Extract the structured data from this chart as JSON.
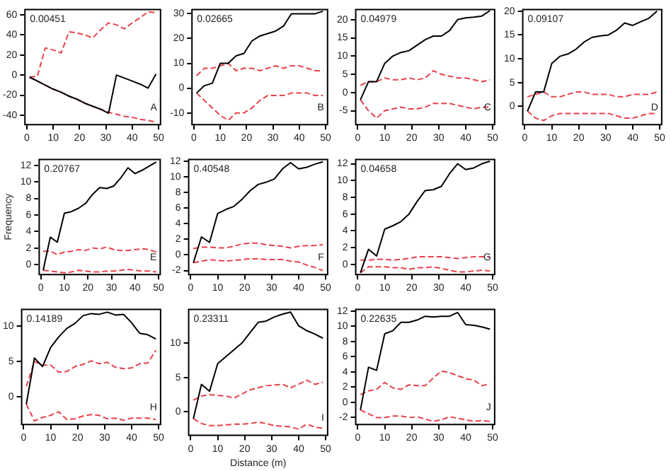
{
  "chart_data": [
    {
      "type": "line",
      "annotations": [
        "0.00451",
        "A"
      ],
      "x": [
        1,
        4,
        7,
        10,
        13,
        16,
        19,
        22,
        25,
        28,
        31,
        34,
        37,
        40,
        43,
        46,
        49
      ],
      "xlim": [
        -1,
        51
      ],
      "xticks": [
        0,
        10,
        20,
        30,
        40,
        50
      ],
      "ylim": [
        -50,
        66
      ],
      "yticks": [
        -40,
        -20,
        0,
        20,
        40,
        60
      ],
      "legend": false,
      "grid": false,
      "series": [
        {
          "color": "#000000",
          "line_style": "solid",
          "values": [
            -2,
            -6,
            -10,
            -14,
            -17,
            -21,
            -24,
            -28,
            -31,
            -34,
            -38,
            0,
            -3,
            -6,
            -9,
            -13,
            1
          ]
        },
        {
          "color": "#e8424a",
          "line_style": "dashed",
          "values": [
            -2,
            -1,
            27,
            25,
            22,
            43,
            42,
            40,
            37,
            45,
            52,
            50,
            46,
            52,
            57,
            63,
            62
          ]
        },
        {
          "color": "#e8424a",
          "line_style": "dashed",
          "values": [
            -2,
            -6,
            -10,
            -14,
            -17,
            -21,
            -24,
            -28,
            -31,
            -34,
            -37,
            -39,
            -41,
            -42,
            -44,
            -45,
            -47
          ]
        }
      ]
    },
    {
      "type": "line",
      "annotations": [
        "0.02665",
        "B"
      ],
      "x": [
        1,
        4,
        7,
        10,
        13,
        16,
        19,
        22,
        25,
        28,
        31,
        34,
        37,
        40,
        43,
        46,
        49
      ],
      "xlim": [
        -1,
        51
      ],
      "xticks": [
        0,
        10,
        20,
        30,
        40,
        50
      ],
      "ylim": [
        -15,
        32
      ],
      "yticks": [
        -10,
        0,
        10,
        20,
        30
      ],
      "legend": false,
      "grid": false,
      "series": [
        {
          "color": "#000000",
          "line_style": "solid",
          "values": [
            -2,
            1,
            2,
            10,
            10,
            13,
            14,
            19,
            21,
            22,
            23,
            25,
            30,
            30,
            30,
            30,
            31
          ]
        },
        {
          "color": "#e8424a",
          "line_style": "dashed",
          "values": [
            5,
            8,
            8,
            9,
            10,
            7,
            8,
            8,
            7,
            8,
            9,
            8,
            9,
            9,
            8,
            7,
            7
          ]
        },
        {
          "color": "#e8424a",
          "line_style": "dashed",
          "values": [
            -2,
            -5,
            -8,
            -11,
            -13,
            -10,
            -10,
            -8,
            -5,
            -3,
            -3,
            -3,
            -2,
            -2,
            -2,
            -3,
            -3
          ]
        }
      ]
    },
    {
      "type": "line",
      "annotations": [
        "0.04979",
        "C"
      ],
      "x": [
        1,
        4,
        7,
        10,
        13,
        16,
        19,
        22,
        25,
        28,
        31,
        34,
        37,
        40,
        43,
        46,
        49
      ],
      "xlim": [
        -1,
        51
      ],
      "xticks": [
        0,
        10,
        20,
        30,
        40,
        50
      ],
      "ylim": [
        -9,
        23
      ],
      "yticks": [
        -5,
        0,
        5,
        10,
        15,
        20
      ],
      "legend": false,
      "grid": false,
      "series": [
        {
          "color": "#000000",
          "line_style": "solid",
          "values": [
            -2,
            3,
            3,
            8,
            10,
            11,
            11.5,
            13,
            14.5,
            15.5,
            15.5,
            17,
            20,
            20.5,
            20.7,
            21,
            22.5
          ]
        },
        {
          "color": "#e8424a",
          "line_style": "dashed",
          "values": [
            2,
            3,
            3,
            4,
            3.5,
            3.5,
            4,
            3.5,
            4,
            6,
            5,
            4.5,
            4,
            4,
            3.5,
            3,
            3.5
          ]
        },
        {
          "color": "#e8424a",
          "line_style": "dashed",
          "values": [
            -2,
            -5,
            -7,
            -5,
            -4.5,
            -4,
            -4.5,
            -4.5,
            -4,
            -3,
            -3,
            -3,
            -3.5,
            -4,
            -4.5,
            -4,
            -4
          ]
        }
      ]
    },
    {
      "type": "line",
      "annotations": [
        "0.09107",
        "D"
      ],
      "x": [
        1,
        4,
        7,
        10,
        13,
        16,
        19,
        22,
        25,
        28,
        31,
        34,
        37,
        40,
        43,
        46,
        49
      ],
      "xlim": [
        -1,
        51
      ],
      "xticks": [
        0,
        10,
        20,
        30,
        40,
        50
      ],
      "ylim": [
        -4,
        20.5
      ],
      "yticks": [
        0,
        5,
        10,
        15,
        20
      ],
      "legend": false,
      "grid": false,
      "series": [
        {
          "color": "#000000",
          "line_style": "solid",
          "values": [
            -1,
            3,
            3,
            9,
            10.5,
            11,
            12,
            13.5,
            14.5,
            14.8,
            15,
            16,
            17.5,
            17,
            17.8,
            18.5,
            20
          ]
        },
        {
          "color": "#e8424a",
          "line_style": "dashed",
          "values": [
            2,
            2.5,
            3,
            2,
            2,
            2.5,
            3,
            3,
            2.5,
            2.5,
            2.5,
            2,
            2,
            2.5,
            2.5,
            2.5,
            3
          ]
        },
        {
          "color": "#e8424a",
          "line_style": "dashed",
          "values": [
            -1,
            -2.5,
            -3,
            -2,
            -1.5,
            -1.5,
            -1.5,
            -1.5,
            -1.5,
            -1.5,
            -1.5,
            -2,
            -2.5,
            -2.5,
            -2,
            -1.5,
            -1.5
          ]
        }
      ]
    },
    {
      "type": "line",
      "annotations": [
        "0.20767",
        "E"
      ],
      "ylabel": "Frequency",
      "x": [
        1,
        4,
        7,
        10,
        13,
        16,
        19,
        22,
        25,
        28,
        31,
        34,
        37,
        40,
        43,
        46,
        49
      ],
      "xlim": [
        -1,
        51
      ],
      "xticks": [
        0,
        10,
        20,
        30,
        40,
        50
      ],
      "ylim": [
        -1.3,
        12.8
      ],
      "yticks": [
        0,
        2,
        4,
        6,
        8,
        10,
        12
      ],
      "legend": false,
      "grid": false,
      "series": [
        {
          "color": "#000000",
          "line_style": "solid",
          "values": [
            -0.7,
            3.3,
            2.7,
            6.2,
            6.4,
            6.8,
            7.4,
            8.5,
            9.3,
            9.2,
            9.5,
            10.5,
            11.7,
            11,
            11.4,
            11.9,
            12.4
          ]
        },
        {
          "color": "#e8424a",
          "line_style": "dashed",
          "values": [
            1.6,
            1.6,
            1.2,
            1.5,
            1.6,
            1.8,
            1.7,
            2,
            1.9,
            2.1,
            1.8,
            1.7,
            1.7,
            1.8,
            1.9,
            1.8,
            1.5
          ]
        },
        {
          "color": "#e8424a",
          "line_style": "dashed",
          "values": [
            -0.7,
            -0.8,
            -0.9,
            -1,
            -0.9,
            -0.7,
            -0.8,
            -0.9,
            -0.9,
            -0.8,
            -0.8,
            -0.7,
            -0.6,
            -0.7,
            -0.8,
            -0.8,
            -0.9
          ]
        }
      ]
    },
    {
      "type": "line",
      "annotations": [
        "0.40548",
        "F"
      ],
      "x": [
        1,
        4,
        7,
        10,
        13,
        16,
        19,
        22,
        25,
        28,
        31,
        34,
        37,
        40,
        43,
        46,
        49
      ],
      "xlim": [
        -1,
        51
      ],
      "xticks": [
        0,
        10,
        20,
        30,
        40,
        50
      ],
      "ylim": [
        -2.6,
        12.3
      ],
      "yticks": [
        -2,
        0,
        2,
        4,
        6,
        8,
        10,
        12
      ],
      "legend": false,
      "grid": false,
      "series": [
        {
          "color": "#000000",
          "line_style": "solid",
          "values": [
            -1,
            2.3,
            1.6,
            5.3,
            5.8,
            6.2,
            7.1,
            8.2,
            9,
            9.3,
            9.7,
            11,
            11.8,
            11,
            11.2,
            11.6,
            11.9
          ]
        },
        {
          "color": "#e8424a",
          "line_style": "dashed",
          "values": [
            0.8,
            1,
            1,
            0.9,
            0.9,
            1.1,
            1.4,
            1.5,
            1.5,
            1.3,
            1.2,
            1.1,
            0.9,
            1.1,
            1.2,
            1.2,
            1.3
          ]
        },
        {
          "color": "#e8424a",
          "line_style": "dashed",
          "values": [
            -1,
            -0.8,
            -0.6,
            -0.7,
            -0.8,
            -0.7,
            -0.6,
            -0.5,
            -0.5,
            -0.6,
            -0.6,
            -0.6,
            -0.8,
            -0.9,
            -1.3,
            -1.6,
            -2
          ]
        }
      ]
    },
    {
      "type": "line",
      "annotations": [
        "0.04658",
        "G"
      ],
      "x": [
        1,
        4,
        7,
        10,
        13,
        16,
        19,
        22,
        25,
        28,
        31,
        34,
        37,
        40,
        43,
        46,
        49
      ],
      "xlim": [
        -1,
        51
      ],
      "xticks": [
        0,
        10,
        20,
        30,
        40,
        50
      ],
      "ylim": [
        -1.3,
        12.6
      ],
      "yticks": [
        0,
        2,
        4,
        6,
        8,
        10,
        12
      ],
      "legend": false,
      "grid": false,
      "series": [
        {
          "color": "#000000",
          "line_style": "solid",
          "values": [
            -1,
            1.8,
            1,
            4.2,
            4.6,
            5.1,
            6,
            7.5,
            8.8,
            8.9,
            9.3,
            10.8,
            12,
            11.3,
            11.5,
            12,
            12.3
          ]
        },
        {
          "color": "#e8424a",
          "line_style": "dashed",
          "values": [
            0.5,
            0.5,
            0.6,
            0.6,
            0.5,
            0.6,
            0.7,
            0.9,
            0.9,
            0.9,
            0.9,
            0.8,
            0.7,
            0.8,
            0.9,
            0.9,
            0.9
          ]
        },
        {
          "color": "#e8424a",
          "line_style": "dashed",
          "values": [
            -1,
            -0.3,
            -0.3,
            -0.3,
            -0.4,
            -0.4,
            -0.6,
            -0.4,
            -0.4,
            -0.3,
            -0.5,
            -0.7,
            -0.9,
            -0.9,
            -0.8,
            -0.7,
            -0.8
          ]
        }
      ]
    },
    {
      "type": "line",
      "annotations": [
        "0.14189",
        "H"
      ],
      "x": [
        1,
        4,
        7,
        10,
        13,
        16,
        19,
        22,
        25,
        28,
        31,
        34,
        37,
        40,
        43,
        46,
        49
      ],
      "xlim": [
        -1,
        51
      ],
      "xticks": [
        0,
        10,
        20,
        30,
        40,
        50
      ],
      "ylim": [
        -4,
        12.5
      ],
      "yticks": [
        0,
        5,
        10
      ],
      "legend": false,
      "grid": false,
      "series": [
        {
          "color": "#000000",
          "line_style": "solid",
          "values": [
            -1,
            5.5,
            4.3,
            7,
            8.5,
            9.7,
            10.4,
            11.5,
            11.8,
            11.7,
            12,
            11.6,
            11.7,
            10.5,
            9,
            8.8,
            8.2
          ]
        },
        {
          "color": "#e8424a",
          "line_style": "dashed",
          "values": [
            1.5,
            5,
            4.5,
            4.5,
            3.5,
            3.6,
            4.3,
            4.6,
            5.1,
            4.7,
            4.9,
            4.2,
            4,
            4.1,
            4.7,
            4.8,
            6.6
          ]
        },
        {
          "color": "#e8424a",
          "line_style": "dashed",
          "values": [
            -1,
            -3.4,
            -2.9,
            -2.6,
            -2.1,
            -3.2,
            -3.1,
            -2.7,
            -2.5,
            -2.6,
            -3.1,
            -3,
            -3.3,
            -3,
            -3,
            -3,
            -3.2
          ]
        }
      ]
    },
    {
      "type": "line",
      "annotations": [
        "0.23311",
        "I"
      ],
      "xlabel": "Distance (m)",
      "x": [
        1,
        4,
        7,
        10,
        13,
        16,
        19,
        22,
        25,
        28,
        31,
        34,
        37,
        40,
        43,
        46,
        49
      ],
      "xlim": [
        -1,
        51
      ],
      "xticks": [
        0,
        10,
        20,
        30,
        40,
        50
      ],
      "ylim": [
        -3.5,
        15
      ],
      "yticks": [
        0,
        5,
        10
      ],
      "legend": false,
      "grid": false,
      "series": [
        {
          "color": "#000000",
          "line_style": "solid",
          "values": [
            -1,
            4,
            3,
            7,
            8,
            9,
            10,
            11.5,
            13,
            13.2,
            13.8,
            14.2,
            14.5,
            12.5,
            11.8,
            11.3,
            10.7
          ]
        },
        {
          "color": "#e8424a",
          "line_style": "dashed",
          "values": [
            1.7,
            2.3,
            2.5,
            2.4,
            2.3,
            2,
            2.6,
            3.2,
            3.5,
            3.8,
            3.9,
            4,
            3.5,
            4,
            4.6,
            4,
            4.3
          ]
        },
        {
          "color": "#e8424a",
          "line_style": "dashed",
          "values": [
            -1,
            -1.7,
            -2,
            -2,
            -1.9,
            -1.8,
            -1.8,
            -1.7,
            -1.5,
            -1.7,
            -2,
            -2.1,
            -2.2,
            -2.5,
            -1.8,
            -2.2,
            -2.4
          ]
        }
      ]
    },
    {
      "type": "line",
      "annotations": [
        "0.22635",
        "J"
      ],
      "x": [
        1,
        4,
        7,
        10,
        13,
        16,
        19,
        22,
        25,
        28,
        31,
        34,
        37,
        40,
        43,
        46,
        49
      ],
      "xlim": [
        -1,
        51
      ],
      "xticks": [
        0,
        10,
        20,
        30,
        40,
        50
      ],
      "ylim": [
        -3,
        12.3
      ],
      "yticks": [
        -2,
        0,
        2,
        4,
        6,
        8,
        10,
        12
      ],
      "legend": false,
      "grid": false,
      "series": [
        {
          "color": "#000000",
          "line_style": "solid",
          "values": [
            -1,
            4.6,
            4.2,
            9,
            9.4,
            10.5,
            10.5,
            10.8,
            11.3,
            11.2,
            11.3,
            11.3,
            11.8,
            10.2,
            10.1,
            9.9,
            9.6
          ]
        },
        {
          "color": "#e8424a",
          "line_style": "dashed",
          "values": [
            1,
            1.5,
            1.7,
            2.6,
            1.9,
            1.7,
            2.3,
            2.2,
            2.2,
            3.2,
            4.1,
            3.9,
            3.5,
            3.1,
            2.9,
            2.2,
            2.4
          ]
        },
        {
          "color": "#e8424a",
          "line_style": "dashed",
          "values": [
            -1,
            -1.5,
            -2,
            -2,
            -1.8,
            -1.8,
            -2,
            -1.9,
            -2.2,
            -2.5,
            -2.3,
            -1.9,
            -2.1,
            -2.3,
            -2.5,
            -2.4,
            -2.5
          ]
        }
      ]
    }
  ]
}
